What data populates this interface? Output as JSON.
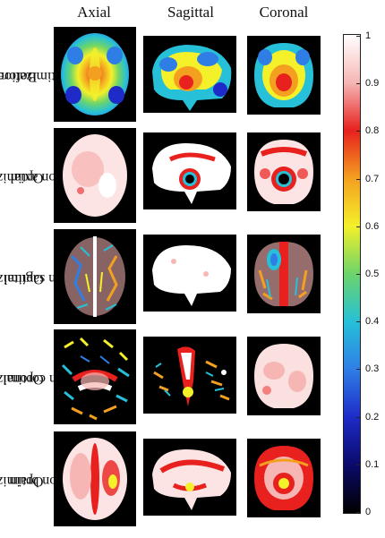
{
  "columns": [
    "Axial",
    "Sagittal",
    "Coronal"
  ],
  "rows": [
    {
      "label_line1": "Before",
      "label_line2": "optimization"
    },
    {
      "label_line1": "Optimize",
      "label_line2": "on axial"
    },
    {
      "label_line1": "Optimize",
      "label_line2": "on sagittal"
    },
    {
      "label_line1": "Optimize",
      "label_line2": "on coronal"
    },
    {
      "label_line1": "Optimize",
      "label_line2": "on brain"
    }
  ],
  "colorbar": {
    "ticks": [
      "1",
      "0.9",
      "0.8",
      "0.7",
      "0.6",
      "0.5",
      "0.4",
      "0.3",
      "0.2",
      "0.1",
      "0"
    ],
    "colors": [
      "#ffffff",
      "#f6b6b4",
      "#e8201e",
      "#f3a020",
      "#f4f02a",
      "#6cd46a",
      "#26c0d8",
      "#2f7ee6",
      "#1e2bc8",
      "#0a0a6a",
      "#000000"
    ]
  }
}
